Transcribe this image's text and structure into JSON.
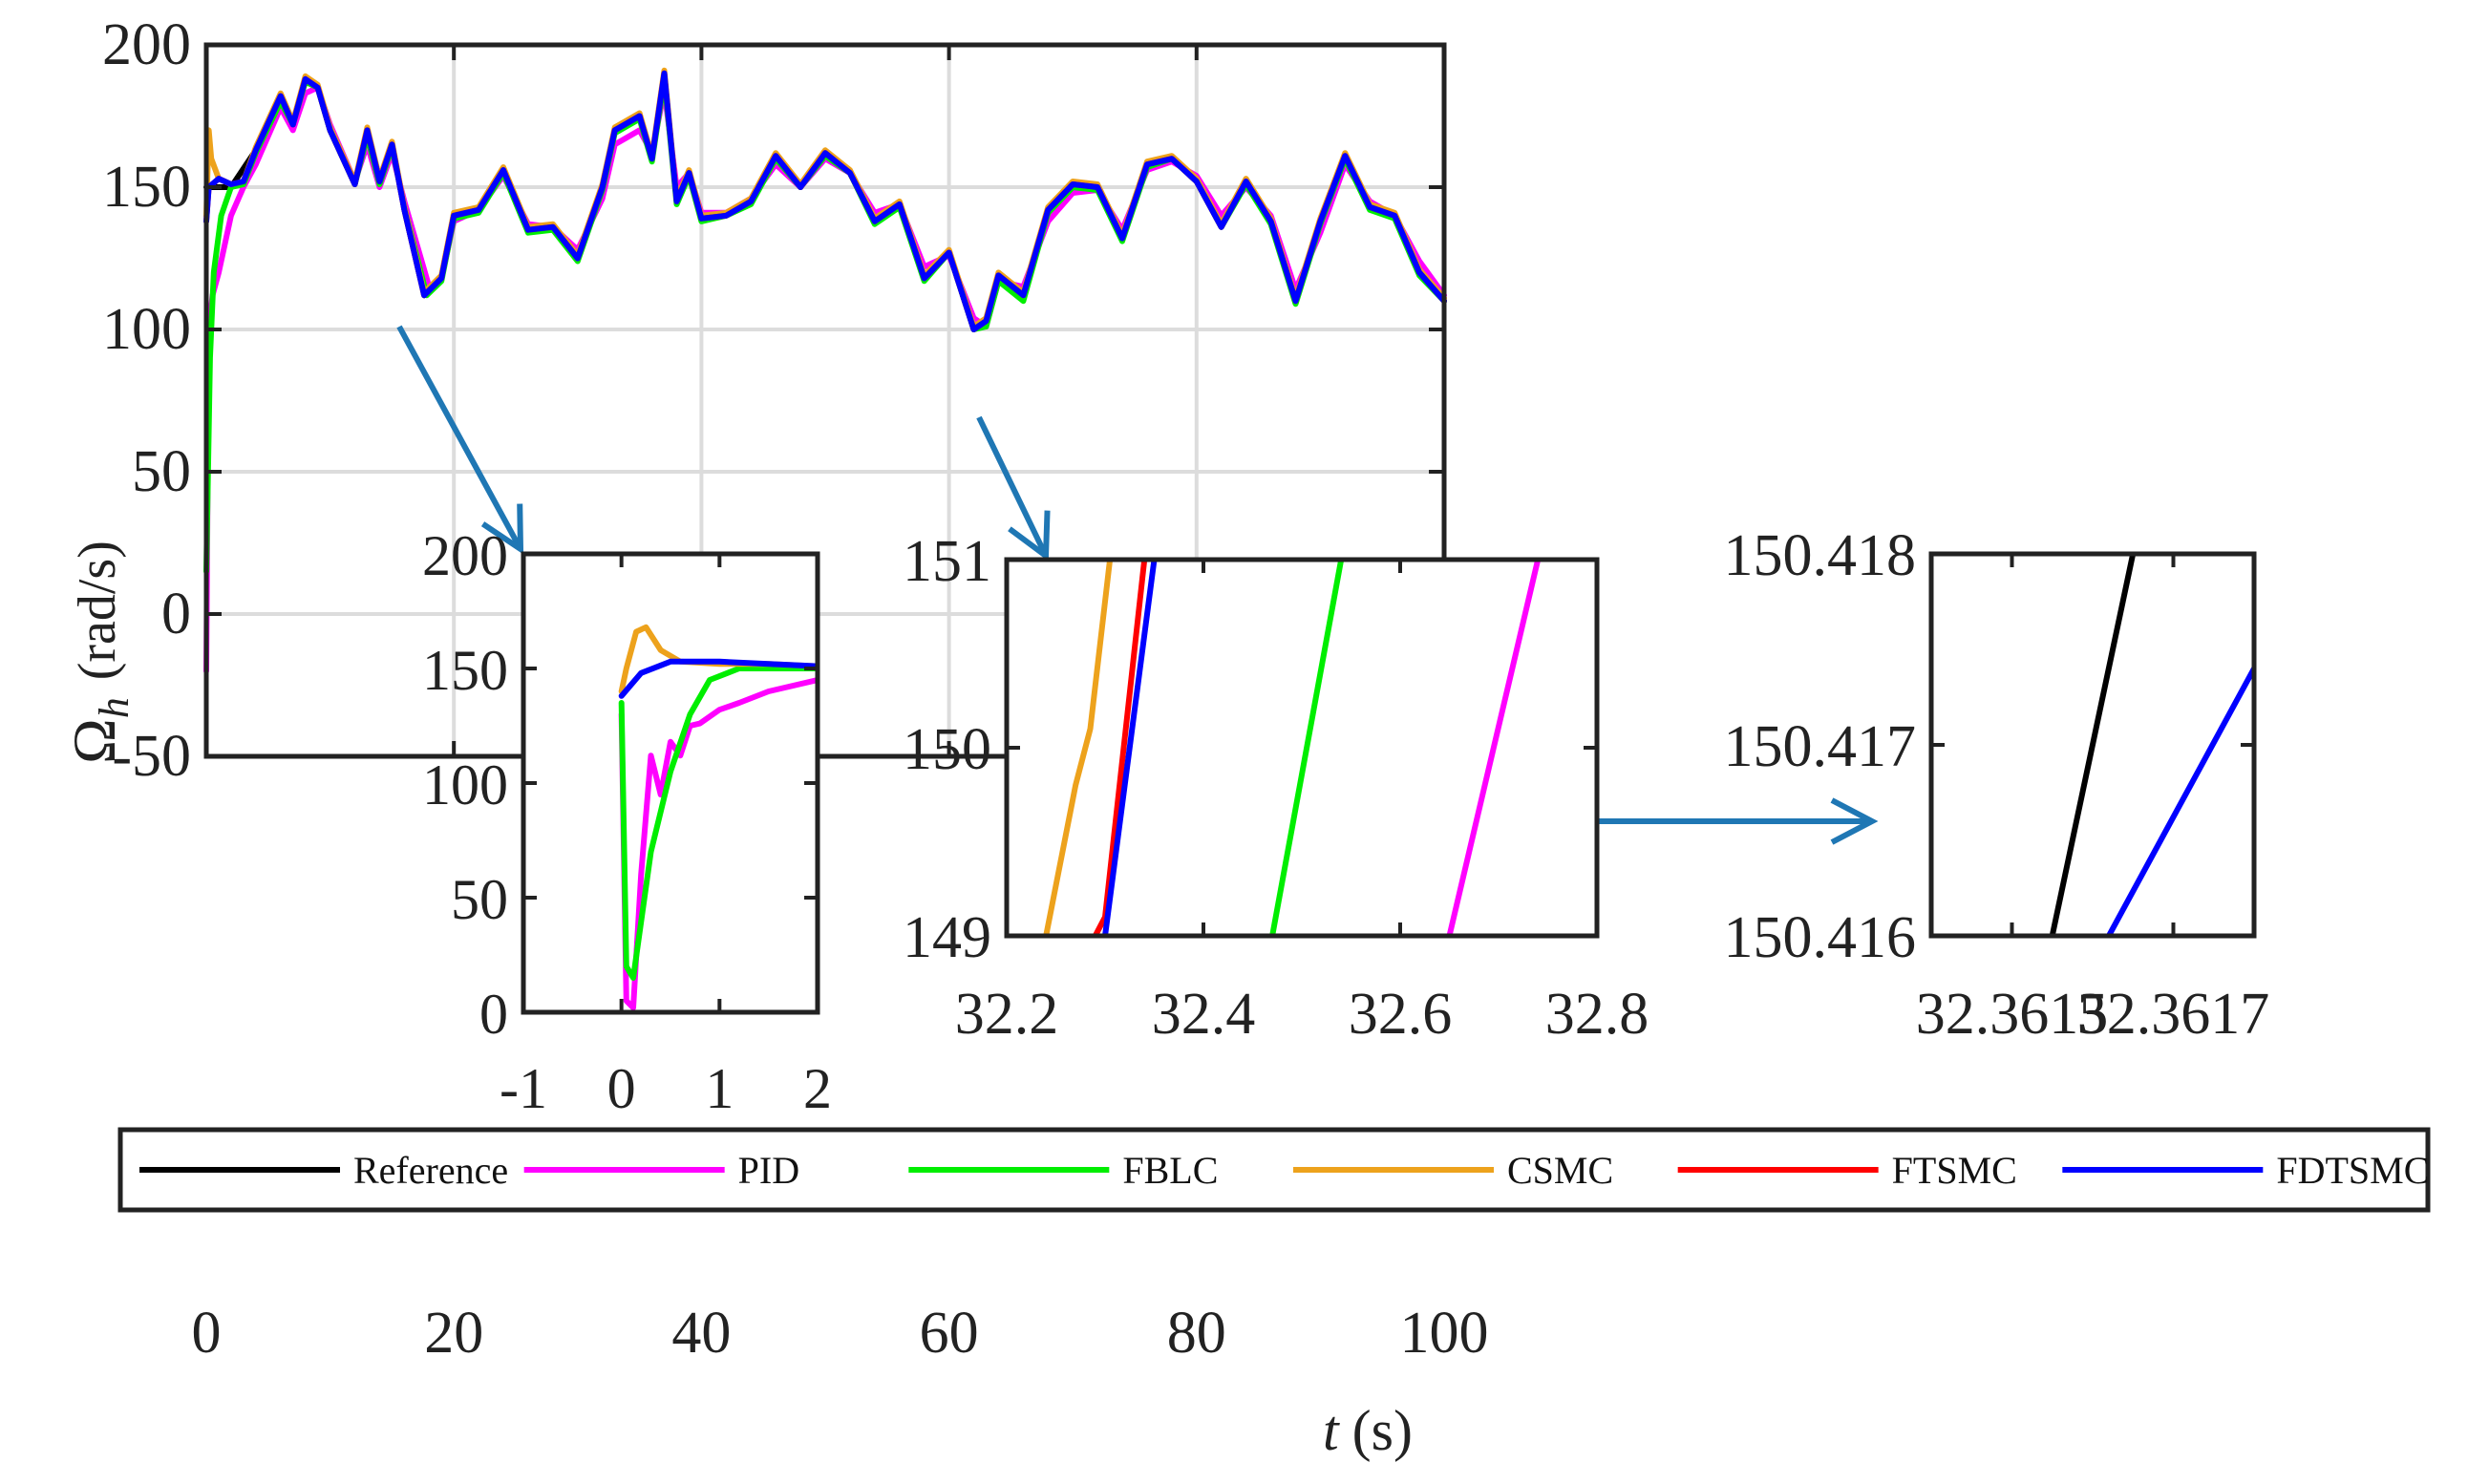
{
  "chart_data": {
    "type": "line",
    "xlabel_var": "t",
    "xlabel_unit": "(s)",
    "ylabel_symbol": "Ω",
    "ylabel_sub": "h",
    "ylabel_unit": "(rad/s)",
    "xlim": [
      0,
      100
    ],
    "ylim": [
      -50,
      200
    ],
    "grid": true,
    "x_ticks": [
      "0",
      "20",
      "40",
      "60",
      "80",
      "100"
    ],
    "y_ticks": [
      "-50",
      "0",
      "50",
      "100",
      "150",
      "200"
    ],
    "legend_position": "bottom, horizontal",
    "colors": {
      "Reference": "#000000",
      "PID": "#ff00ff",
      "FBLC": "#00ee00",
      "CSMC": "#eda21c",
      "FTSMC": "#ff0000",
      "FDTSMC": "#0000ff",
      "arrow": "#1f77b4"
    },
    "series": [
      {
        "name": "Reference",
        "x": [
          0,
          2,
          4,
          6,
          7,
          8,
          9,
          10,
          12,
          13,
          14,
          15,
          16,
          17.6,
          19,
          20,
          22,
          24,
          26,
          28,
          30,
          32,
          33,
          35,
          36,
          37,
          38,
          39,
          40,
          42,
          44,
          46,
          48,
          50,
          52,
          54,
          56,
          58,
          60,
          62,
          63,
          64,
          66,
          68,
          70,
          72,
          74,
          76,
          78,
          80,
          82,
          84,
          86,
          88,
          90,
          92,
          94,
          96,
          98,
          100
        ],
        "y": [
          150,
          150,
          163,
          182,
          172,
          188,
          185,
          170,
          151,
          170,
          152,
          165,
          142,
          112,
          118,
          140,
          142,
          156,
          135,
          136,
          125,
          150,
          170,
          175,
          160,
          190,
          145,
          155,
          139,
          140,
          145,
          161,
          150,
          162,
          155,
          138,
          144,
          118,
          127,
          100,
          103,
          119,
          112,
          142,
          151,
          150,
          132,
          158,
          160,
          152,
          136,
          152,
          138,
          110,
          138,
          161,
          143,
          140,
          120,
          110
        ]
      },
      {
        "name": "PID",
        "x": [
          0,
          0.2,
          0.5,
          1,
          2,
          3,
          4,
          6,
          7,
          8,
          9,
          10,
          12,
          13,
          14,
          15,
          16,
          18,
          19,
          20,
          22,
          24,
          26,
          28,
          30,
          32,
          33,
          35,
          36,
          37,
          38,
          39,
          40,
          42,
          44,
          46,
          48,
          50,
          52,
          54,
          56,
          58,
          60,
          62,
          63,
          64,
          66,
          68,
          70,
          72,
          74,
          76,
          78,
          80,
          82,
          84,
          86,
          88,
          90,
          92,
          94,
          96,
          98,
          100
        ],
        "y": [
          -20,
          100,
          112,
          120,
          140,
          150,
          158,
          178,
          170,
          183,
          185,
          172,
          152,
          165,
          150,
          162,
          145,
          115,
          118,
          138,
          142,
          154,
          137,
          136,
          128,
          146,
          165,
          170,
          162,
          184,
          150,
          155,
          141,
          141,
          146,
          158,
          150,
          160,
          155,
          141,
          144,
          122,
          126,
          104,
          101,
          117,
          115,
          138,
          148,
          149,
          135,
          156,
          159,
          154,
          140,
          150,
          140,
          114,
          134,
          158,
          145,
          140,
          124,
          112
        ]
      },
      {
        "name": "FBLC",
        "x": [
          0,
          0.3,
          0.6,
          1.2,
          2,
          3,
          4,
          6,
          7,
          8,
          9,
          10,
          12,
          13,
          14,
          15,
          16,
          17.8,
          19,
          20,
          22,
          24,
          26,
          28,
          30,
          32,
          33,
          35,
          36,
          37,
          38,
          39,
          40,
          42,
          44,
          46,
          48,
          50,
          52,
          54,
          56,
          58,
          60,
          62,
          63,
          64,
          66,
          68,
          70,
          72,
          74,
          76,
          78,
          80,
          82,
          84,
          86,
          88,
          90,
          92,
          94,
          96,
          98,
          100
        ],
        "y": [
          15,
          90,
          120,
          140,
          150,
          151,
          162,
          180,
          172,
          187,
          185,
          170,
          151,
          168,
          151,
          164,
          143,
          112,
          117,
          139,
          141,
          155,
          134,
          135,
          124,
          149,
          169,
          174,
          159,
          188,
          144,
          154,
          138,
          140,
          144,
          160,
          150,
          161,
          155,
          137,
          143,
          117,
          127,
          100,
          101,
          117,
          110,
          141,
          150,
          149,
          131,
          157,
          160,
          152,
          136,
          151,
          137,
          109,
          137,
          160,
          142,
          139,
          119,
          110
        ]
      },
      {
        "name": "CSMC",
        "x": [
          0,
          0.2,
          0.4,
          1,
          2,
          3,
          4,
          6,
          7,
          8,
          9,
          10,
          12,
          13,
          14,
          15,
          16,
          17.6,
          19,
          20,
          22,
          24,
          26,
          28,
          30,
          32,
          33,
          35,
          36,
          37,
          38,
          39,
          40,
          42,
          44,
          46,
          48,
          50,
          52,
          54,
          56,
          58,
          60,
          62,
          63,
          64,
          66,
          68,
          70,
          72,
          74,
          76,
          78,
          80,
          82,
          84,
          86,
          88,
          90,
          92,
          94,
          96,
          98,
          100
        ],
        "y": [
          140,
          170,
          160,
          153,
          151,
          152,
          164,
          183,
          173,
          189,
          186,
          171,
          152,
          171,
          153,
          166,
          143,
          113,
          119,
          141,
          143,
          157,
          136,
          137,
          126,
          151,
          171,
          176,
          161,
          191,
          146,
          156,
          140,
          141,
          146,
          162,
          151,
          163,
          156,
          139,
          145,
          119,
          128,
          101,
          104,
          120,
          113,
          143,
          152,
          151,
          133,
          159,
          161,
          153,
          137,
          153,
          139,
          111,
          139,
          162,
          144,
          141,
          121,
          111
        ]
      },
      {
        "name": "FTSMC",
        "x": [
          0,
          0.2,
          1,
          2,
          3,
          4,
          6,
          7,
          8,
          9,
          10,
          12,
          13,
          14,
          15,
          16,
          17.6,
          19,
          20,
          22,
          24,
          26,
          28,
          30,
          32,
          33,
          35,
          36,
          37,
          38,
          39,
          40,
          42,
          44,
          46,
          48,
          50,
          52,
          54,
          56,
          58,
          60,
          62,
          63,
          64,
          66,
          68,
          70,
          72,
          74,
          76,
          78,
          80,
          82,
          84,
          86,
          88,
          90,
          92,
          94,
          96,
          98,
          100
        ],
        "y": [
          138,
          150,
          153,
          151,
          152,
          163,
          182,
          172,
          188,
          185,
          170,
          151,
          170,
          152,
          165,
          142,
          112,
          118,
          140,
          142,
          156,
          135,
          136,
          125,
          150,
          170,
          175,
          160,
          190,
          145,
          155,
          139,
          140,
          145,
          161,
          150,
          162,
          155,
          138,
          144,
          118,
          127,
          100,
          103,
          119,
          112,
          142,
          151,
          150,
          132,
          158,
          160,
          152,
          136,
          152,
          138,
          110,
          138,
          161,
          143,
          140,
          120,
          110
        ]
      },
      {
        "name": "FDTSMC",
        "x": [
          0,
          0.2,
          1,
          2,
          3,
          4,
          6,
          7,
          8,
          9,
          10,
          12,
          13,
          14,
          15,
          16,
          17.6,
          19,
          20,
          22,
          24,
          26,
          28,
          30,
          32,
          33,
          35,
          36,
          37,
          38,
          39,
          40,
          42,
          44,
          46,
          48,
          50,
          52,
          54,
          56,
          58,
          60,
          62,
          63,
          64,
          66,
          68,
          70,
          72,
          74,
          76,
          78,
          80,
          82,
          84,
          86,
          88,
          90,
          92,
          94,
          96,
          98,
          100
        ],
        "y": [
          138,
          150,
          153,
          151,
          152,
          163,
          182,
          172,
          188,
          185,
          170,
          151,
          170,
          152,
          165,
          142,
          112,
          118,
          140,
          142,
          156,
          135,
          136,
          125,
          150,
          170,
          175,
          160,
          190,
          145,
          155,
          139,
          140,
          145,
          161,
          150,
          162,
          155,
          138,
          144,
          118,
          127,
          100,
          103,
          119,
          112,
          142,
          151,
          150,
          132,
          158,
          160,
          152,
          136,
          152,
          138,
          110,
          138,
          161,
          143,
          140,
          120,
          110
        ]
      }
    ],
    "insets": [
      {
        "xlim": [
          -1,
          2
        ],
        "ylim": [
          0,
          200
        ],
        "x_ticks": [
          "-1",
          "0",
          "1",
          "2"
        ],
        "y_ticks": [
          "0",
          "50",
          "100",
          "150",
          "200"
        ],
        "series": [
          {
            "name": "PID",
            "x": [
              0,
              0.05,
              0.12,
              0.2,
              0.3,
              0.4,
              0.5,
              0.6,
              0.7,
              0.8,
              1.0,
              1.2,
              1.5,
              2.0
            ],
            "y": [
              130,
              5,
              2,
              60,
              112,
              95,
              118,
              112,
              125,
              126,
              132,
              135,
              140,
              145
            ]
          },
          {
            "name": "FBLC",
            "x": [
              0,
              0.05,
              0.12,
              0.3,
              0.5,
              0.7,
              0.9,
              1.2,
              1.5,
              2.0
            ],
            "y": [
              135,
              20,
              15,
              70,
              105,
              130,
              145,
              150,
              150,
              150
            ]
          },
          {
            "name": "CSMC",
            "x": [
              0,
              0.05,
              0.15,
              0.25,
              0.4,
              0.6,
              1.0,
              1.5,
              2.0
            ],
            "y": [
              140,
              150,
              166,
              168,
              158,
              153,
              152,
              152,
              151
            ]
          },
          {
            "name": "FDTSMC",
            "x": [
              0,
              0.2,
              0.5,
              1.0,
              1.5,
              2.0
            ],
            "y": [
              138,
              148,
              153,
              153,
              152,
              151
            ]
          }
        ]
      },
      {
        "xlim": [
          32.2,
          32.8
        ],
        "ylim": [
          149,
          151
        ],
        "x_ticks": [
          "32.2",
          "32.4",
          "32.6",
          "32.8"
        ],
        "y_ticks": [
          "149",
          "150",
          "151"
        ],
        "series": [
          {
            "name": "CSMC",
            "x": [
              32.24,
              32.27,
              32.285,
              32.305
            ],
            "y": [
              149,
              149.8,
              150.1,
              151
            ]
          },
          {
            "name": "FTSMC",
            "x": [
              32.29,
              32.3,
              32.34
            ],
            "y": [
              149,
              149.1,
              151
            ]
          },
          {
            "name": "FDTSMC",
            "x": [
              32.3,
              32.35
            ],
            "y": [
              149,
              151
            ]
          },
          {
            "name": "FBLC",
            "x": [
              32.47,
              32.54
            ],
            "y": [
              149,
              151
            ]
          },
          {
            "name": "PID",
            "x": [
              32.65,
              32.74
            ],
            "y": [
              149,
              151
            ]
          }
        ]
      },
      {
        "xlim": [
          32.3614,
          32.3618
        ],
        "ylim": [
          150.416,
          150.418
        ],
        "x_ticks": [
          "32.3615",
          "32.3617"
        ],
        "y_ticks": [
          "150.416",
          "150.417",
          "150.418"
        ],
        "series": [
          {
            "name": "Reference",
            "x": [
              32.36155,
              32.36165
            ],
            "y": [
              150.416,
              150.418
            ]
          },
          {
            "name": "FDTSMC",
            "x": [
              32.36162,
              32.3618
            ],
            "y": [
              150.416,
              150.4174
            ]
          }
        ]
      }
    ]
  }
}
